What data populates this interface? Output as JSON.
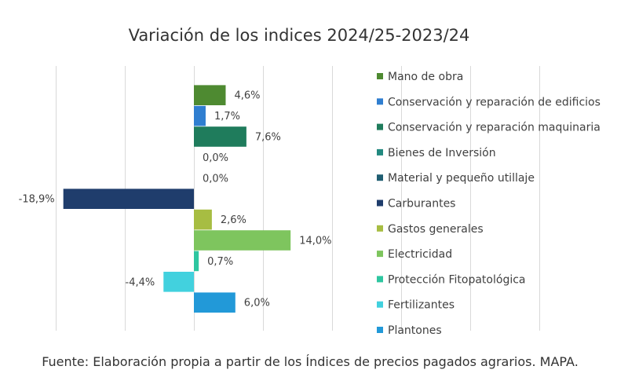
{
  "chart_data": {
    "type": "bar",
    "orientation": "horizontal",
    "title": "Variación de los indices 2024/25-2023/24",
    "categories": [
      "Mano de obra",
      "Conservación y reparación de edificios",
      "Conservación y reparación maquinaria",
      "Bienes de Inversión",
      "Material y pequeño utillaje",
      "Carburantes",
      "Gastos generales",
      "Electricidad",
      "Protección Fitopatológica",
      "Fertilizantes",
      "Plantones"
    ],
    "values": [
      4.6,
      1.7,
      7.6,
      0.0,
      0.0,
      -18.9,
      2.6,
      14.0,
      0.7,
      -4.4,
      6.0
    ],
    "data_labels": [
      "4,6%",
      "1,7%",
      "7,6%",
      "0,0%",
      "0,0%",
      "-18,9%",
      "2,6%",
      "14,0%",
      "0,7%",
      "-4,4%",
      "6,0%"
    ],
    "colors": [
      "#4e8a31",
      "#2f7ed0",
      "#1f7c5c",
      "#22897f",
      "#1f5e72",
      "#1f3d6c",
      "#a7bd42",
      "#7ec55e",
      "#2ec6a0",
      "#42d1de",
      "#2299d8"
    ],
    "xlim": [
      -20,
      50
    ],
    "x_grid_step": 10,
    "grid": true,
    "legend_position": "right"
  },
  "source_note": "Fuente: Elaboración propia a partir de los Índices de precios pagados agrarios. MAPA."
}
